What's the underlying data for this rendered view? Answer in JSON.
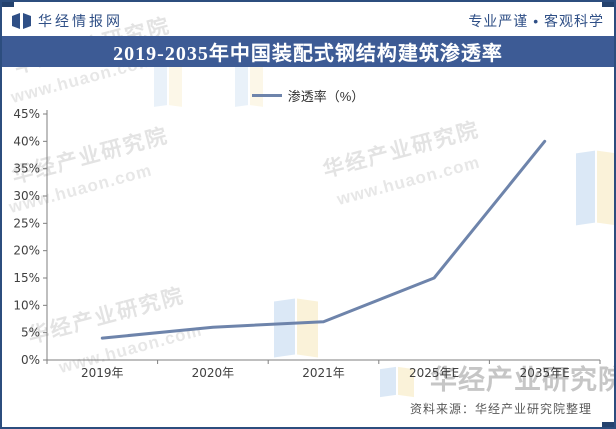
{
  "header": {
    "brand": "华经情报网",
    "slogan": "专业严谨 • 客观科学"
  },
  "title": "2019-2035年中国装配式钢结构建筑渗透率",
  "legend": {
    "label": "渗透率（%）"
  },
  "source": "资料来源：华经产业研究院整理",
  "watermarks": {
    "name_text": "华经产业研究院",
    "site_text": "www.huaon.com"
  },
  "colors": {
    "title_bar_bg": "#3d5b95",
    "brand_text": "#2f4f86",
    "series_line": "#6e84ab",
    "axis": "#7f7f7f",
    "tick_text": "#404040",
    "source_text": "#595959",
    "border": "#2c4d7e"
  },
  "chart_data": {
    "type": "line",
    "title": "2019-2035年中国装配式钢结构建筑渗透率",
    "categories": [
      "2019年",
      "2020年",
      "2021年",
      "2025年E",
      "2035年E"
    ],
    "series": [
      {
        "name": "渗透率（%）",
        "values": [
          4,
          6,
          7,
          15,
          40
        ]
      }
    ],
    "xlabel": "",
    "ylabel": "",
    "ylim": [
      0,
      45
    ],
    "ytick_step": 5,
    "ytick_format": "percent",
    "grid": false,
    "legend_position": "top-center"
  }
}
